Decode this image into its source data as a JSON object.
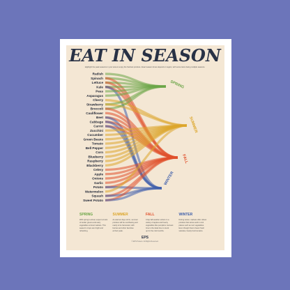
{
  "poster": {
    "title": "EAT IN SEASON",
    "subtitle": "Highlight the peak seasons in your area to enjoy the freshest produce. Exact season times depend on region, with some items being multiple seasons.",
    "seasons": [
      {
        "name": "SPRING",
        "color": "#6ba547",
        "text": [
          "With spring's arrival, expect a burst",
          "of tender greens and early",
          "vegetables at local markets. This",
          "season's crops are bright and",
          "refreshing."
        ]
      },
      {
        "name": "SUMMER",
        "color": "#dca62b",
        "text": [
          "As warmer days roll in, summer",
          "produce will be overflowing and",
          "ready to be harvested, with",
          "berries and other favorites",
          "at their peak."
        ]
      },
      {
        "name": "FALL",
        "color": "#e0502c",
        "text": [
          "Crisp fall weather ushers in a",
          "variety of apples and hearty",
          "vegetables like pumpkins. Harvest",
          "time is the ideal time to stock",
          "up for the cold months."
        ]
      },
      {
        "name": "WINTER",
        "color": "#3f5fab",
        "text": [
          "During winter, markets offer robust",
          "produce that stores well in cool",
          "places such as root vegetables.",
          "Even though there's fewer fresh",
          "varieties, hearty food remains."
        ]
      }
    ],
    "foods": [
      {
        "name": "Radish",
        "seasons": [
          0
        ]
      },
      {
        "name": "Spinach",
        "seasons": [
          0,
          2
        ]
      },
      {
        "name": "Lettuce",
        "seasons": [
          0,
          2
        ]
      },
      {
        "name": "Kale",
        "seasons": [
          0,
          2,
          3
        ]
      },
      {
        "name": "Peas",
        "seasons": [
          0
        ]
      },
      {
        "name": "Asparagus",
        "seasons": [
          0
        ]
      },
      {
        "name": "Cherry",
        "seasons": [
          1
        ]
      },
      {
        "name": "Strawberry",
        "seasons": [
          0,
          1
        ]
      },
      {
        "name": "Broccoli",
        "seasons": [
          0,
          2
        ]
      },
      {
        "name": "Cauliflower",
        "seasons": [
          2
        ]
      },
      {
        "name": "Beet",
        "seasons": [
          2,
          3
        ]
      },
      {
        "name": "Cabbage",
        "seasons": [
          2,
          3
        ]
      },
      {
        "name": "Carrot",
        "seasons": [
          2,
          3
        ]
      },
      {
        "name": "Zucchini",
        "seasons": [
          1
        ]
      },
      {
        "name": "Cucumber",
        "seasons": [
          1
        ]
      },
      {
        "name": "Green Beans",
        "seasons": [
          1
        ]
      },
      {
        "name": "Tomato",
        "seasons": [
          1
        ]
      },
      {
        "name": "Bell Pepper",
        "seasons": [
          1
        ]
      },
      {
        "name": "Corn",
        "seasons": [
          1
        ]
      },
      {
        "name": "Blueberry",
        "seasons": [
          1
        ]
      },
      {
        "name": "Raspberry",
        "seasons": [
          1
        ]
      },
      {
        "name": "Blackberry",
        "seasons": [
          1
        ]
      },
      {
        "name": "Celery",
        "seasons": [
          2
        ]
      },
      {
        "name": "Apple",
        "seasons": [
          2
        ]
      },
      {
        "name": "Onions",
        "seasons": [
          2
        ]
      },
      {
        "name": "Garlic",
        "seasons": [
          2
        ]
      },
      {
        "name": "Potato",
        "seasons": [
          2,
          3
        ]
      },
      {
        "name": "Watermelon",
        "seasons": [
          1
        ]
      },
      {
        "name": "Squash",
        "seasons": [
          2,
          3
        ]
      },
      {
        "name": "Sweet Potato",
        "seasons": [
          2,
          3
        ]
      }
    ],
    "logo": "EPS",
    "copyright": "© EPS Posters. All Rights Reserved."
  }
}
